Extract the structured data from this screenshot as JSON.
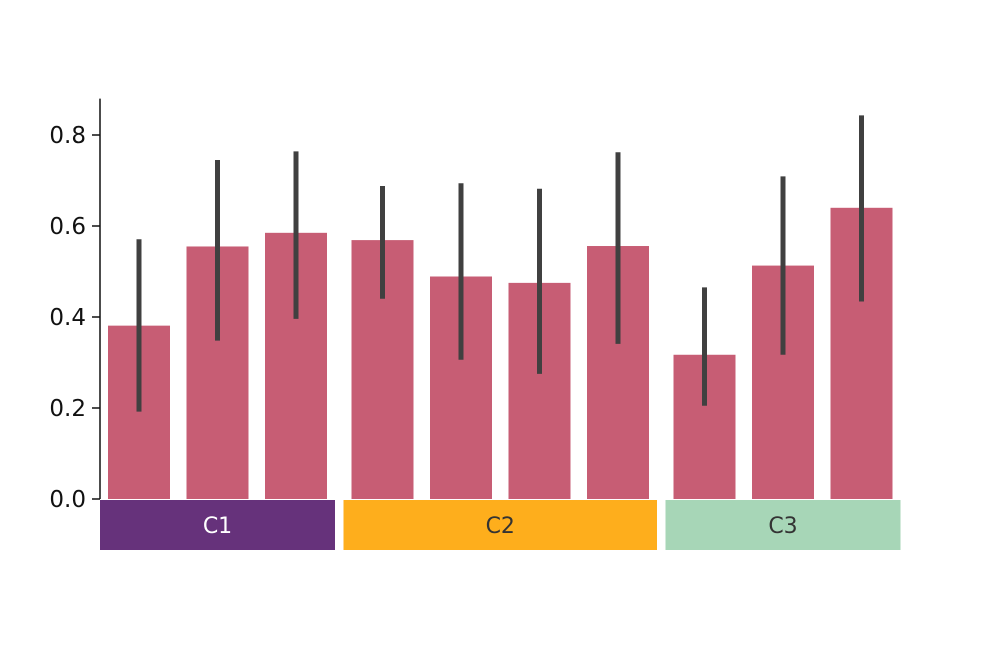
{
  "chart_data": {
    "type": "bar",
    "ylim": [
      0,
      0.88
    ],
    "yticks": [
      "0.0",
      "0.2",
      "0.4",
      "0.6",
      "0.8"
    ],
    "ytick_values": [
      0.0,
      0.2,
      0.4,
      0.6,
      0.8
    ],
    "bar_color": "#c75d74",
    "error_color": "#404040",
    "groups": [
      {
        "label": "C1",
        "color": "#66327b",
        "text_color": "#ffffff",
        "bars": [
          {
            "value": 0.381,
            "err_low": 0.192,
            "err_high": 0.571
          },
          {
            "value": 0.555,
            "err_low": 0.348,
            "err_high": 0.745
          },
          {
            "value": 0.585,
            "err_low": 0.396,
            "err_high": 0.764
          }
        ]
      },
      {
        "label": "C2",
        "color": "#feae1c",
        "text_color": "#333333",
        "bars": [
          {
            "value": 0.569,
            "err_low": 0.44,
            "err_high": 0.688
          },
          {
            "value": 0.489,
            "err_low": 0.306,
            "err_high": 0.694
          },
          {
            "value": 0.475,
            "err_low": 0.275,
            "err_high": 0.682
          },
          {
            "value": 0.556,
            "err_low": 0.341,
            "err_high": 0.762
          }
        ]
      },
      {
        "label": "C3",
        "color": "#a7d6b7",
        "text_color": "#333333",
        "bars": [
          {
            "value": 0.317,
            "err_low": 0.205,
            "err_high": 0.465
          },
          {
            "value": 0.513,
            "err_low": 0.317,
            "err_high": 0.709
          },
          {
            "value": 0.64,
            "err_low": 0.434,
            "err_high": 0.843
          }
        ]
      }
    ]
  }
}
